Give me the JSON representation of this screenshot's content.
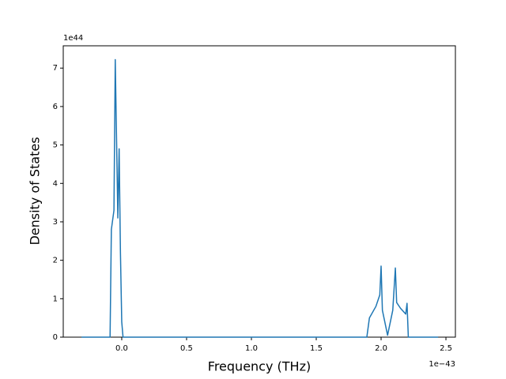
{
  "chart_data": {
    "type": "line",
    "xlabel": "Frequency (THz)",
    "ylabel": "Density of States",
    "x_offset_label": "1e−43",
    "y_offset_label": "1e44",
    "xlim": [
      -0.451,
      2.573
    ],
    "ylim": [
      0,
      7.58
    ],
    "xticks": [
      {
        "value": 0,
        "label": "0.0"
      },
      0.5,
      {
        "value": 1,
        "label": "1.0"
      },
      1.5,
      {
        "value": 2,
        "label": "2.0"
      },
      2.5
    ],
    "yticks": [
      0,
      1,
      2,
      3,
      4,
      5,
      6,
      7
    ],
    "grid": false,
    "series": [
      {
        "color": "#1f77b4",
        "x": [
          -0.31,
          -0.09,
          -0.08,
          -0.06,
          -0.05,
          -0.03,
          -0.02,
          -0.01,
          0.0,
          0.01,
          1.89,
          1.91,
          1.96,
          1.99,
          2.0,
          2.01,
          2.05,
          2.09,
          2.11,
          2.12,
          2.15,
          2.19,
          2.2,
          2.21,
          2.44
        ],
        "values": [
          0,
          0,
          2.8,
          3.3,
          7.22,
          3.1,
          4.9,
          2.2,
          0.4,
          0,
          0,
          0.5,
          0.8,
          1.1,
          1.85,
          0.7,
          0.05,
          0.7,
          1.8,
          0.9,
          0.75,
          0.6,
          0.88,
          0,
          0
        ]
      }
    ]
  }
}
